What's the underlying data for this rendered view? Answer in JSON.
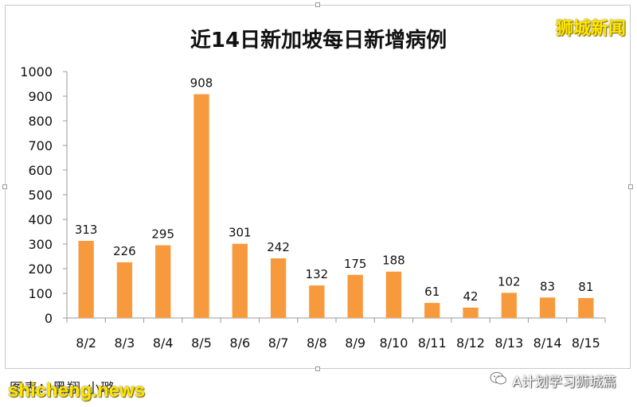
{
  "title": "近14日新加坡每日新增病例",
  "watermark_top": "狮城新闻",
  "footer_caption": "图表：黑翔·小璐",
  "site_mark": "shicheng.news",
  "wechat_label": "A计划学习狮城篇",
  "colors": {
    "bar": "#f79a3e",
    "axis": "#999999",
    "text": "#111111",
    "watermark": "#ffe600"
  },
  "icons": {
    "wechat": "wechat-icon"
  },
  "chart_data": {
    "type": "bar",
    "title": "近14日新加坡每日新增病例",
    "categories": [
      "8/2",
      "8/3",
      "8/4",
      "8/5",
      "8/6",
      "8/7",
      "8/8",
      "8/9",
      "8/10",
      "8/11",
      "8/12",
      "8/13",
      "8/14",
      "8/15"
    ],
    "values": [
      313,
      226,
      295,
      908,
      301,
      242,
      132,
      175,
      188,
      61,
      42,
      102,
      83,
      81
    ],
    "xlabel": "",
    "ylabel": "",
    "ylim": [
      0,
      1000
    ],
    "yticks": [
      0,
      100,
      200,
      300,
      400,
      500,
      600,
      700,
      800,
      900,
      1000
    ],
    "grid": false,
    "data_labels": true,
    "legend": "none"
  }
}
